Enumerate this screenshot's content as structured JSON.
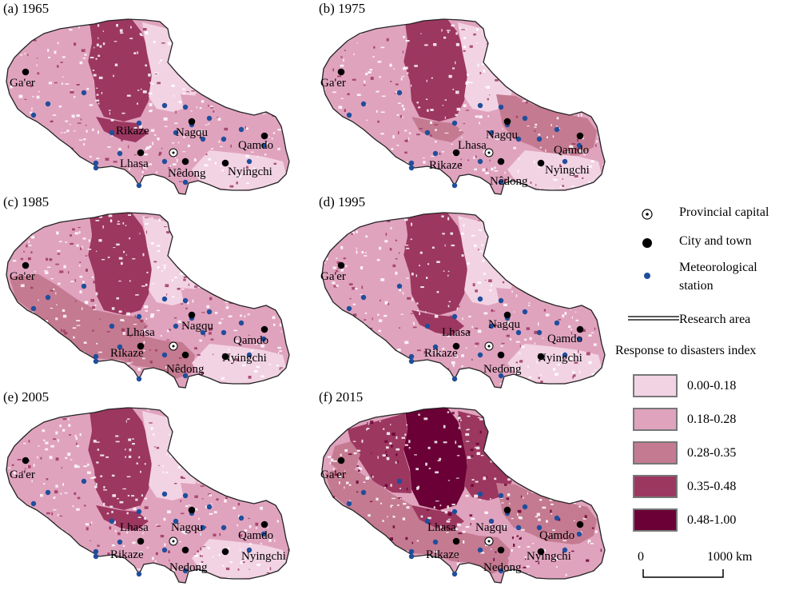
{
  "panels": [
    {
      "id": "a",
      "title": "(a) 1965",
      "level": 1
    },
    {
      "id": "b",
      "title": "(b) 1975",
      "level": 1
    },
    {
      "id": "c",
      "title": "(c) 1985",
      "level": 1
    },
    {
      "id": "d",
      "title": "(d) 1995",
      "level": 1
    },
    {
      "id": "e",
      "title": "(e) 2005",
      "level": 1
    },
    {
      "id": "f",
      "title": "(f) 2015",
      "level": 2
    }
  ],
  "cities": [
    {
      "name": "Ga'er",
      "type": "city"
    },
    {
      "name": "Rikaze",
      "type": "city"
    },
    {
      "name": "Lhasa",
      "type": "capital"
    },
    {
      "name": "Nagqu",
      "type": "city"
    },
    {
      "name": "Nedong",
      "type": "city"
    },
    {
      "name": "Qamdo",
      "type": "city"
    },
    {
      "name": "Nyingchi",
      "type": "city"
    }
  ],
  "panel_labels": [
    {
      "Ga'er": "Ga'er",
      "Rikaze": "Rikaze",
      "Lhasa": "Lhasa",
      "Nagqu": "Nagqu",
      "Nedong": "Nêdong",
      "Qamdo": "Qamdo",
      "Nyingchi": "Nyingchi"
    },
    {
      "Ga'er": "Ga'er",
      "Rikaze": "Rikaze",
      "Lhasa": "Lhasa",
      "Nagqu": "Nagqu",
      "Nedong": "Nêdong",
      "Qamdo": "Qamdo",
      "Nyingchi": "Nyingchi"
    },
    {
      "Ga'er": "Ga'er",
      "Rikaze": "Rikaze",
      "Lhasa": "Lhasa",
      "Nagqu": "Nagqu",
      "Nedong": "Nêdong",
      "Qamdo": "Qamdo",
      "Nyingchi": "Nyingchi"
    },
    {
      "Ga'er": "Ga'er",
      "Rikaze": "Rikaze",
      "Lhasa": "Lhasa",
      "Nagqu": "Nagqu",
      "Nedong": "Nedong",
      "Qamdo": "Qamdo",
      "Nyingchi": "Nyingchi"
    },
    {
      "Ga'er": "Ga'er",
      "Rikaze": "Rikaze",
      "Lhasa": "Lhasa",
      "Nagqu": "Nagqu",
      "Nedong": "Nedong",
      "Qamdo": "Qamdo",
      "Nyingchi": "Nyingchi"
    },
    {
      "Ga'er": "Ga'er",
      "Rikaze": "Rikaze",
      "Lhasa": "Lhasa",
      "Nagqu": "Nagqu",
      "Nedong": "Nedong",
      "Qamdo": "Qamdo",
      "Nyingchi": "Nyingchi"
    }
  ],
  "legend": {
    "symbols": [
      {
        "label": "Provincial capital",
        "icon": "provincial-capital-icon"
      },
      {
        "label": "City and town",
        "icon": "city-icon"
      },
      {
        "label": "Meteorological",
        "icon": "station-icon"
      },
      {
        "label": "station",
        "icon": ""
      },
      {
        "label": "Research area",
        "icon": "boundary-line-icon"
      }
    ],
    "index_title": "Response to disasters index",
    "classes": [
      {
        "label": "0.00-0.18",
        "color": "#f2d3e3"
      },
      {
        "label": "0.18-0.28",
        "color": "#e0a3be"
      },
      {
        "label": "0.28-0.35",
        "color": "#c47a91"
      },
      {
        "label": "0.35-0.48",
        "color": "#9c3760"
      },
      {
        "label": "0.48-1.00",
        "color": "#6a0035"
      }
    ]
  },
  "scale_bar": {
    "start": "0",
    "end": "1000 km"
  },
  "colors": {
    "station": "#1f4e9c",
    "city": "#000000",
    "boundary": "#222222"
  }
}
